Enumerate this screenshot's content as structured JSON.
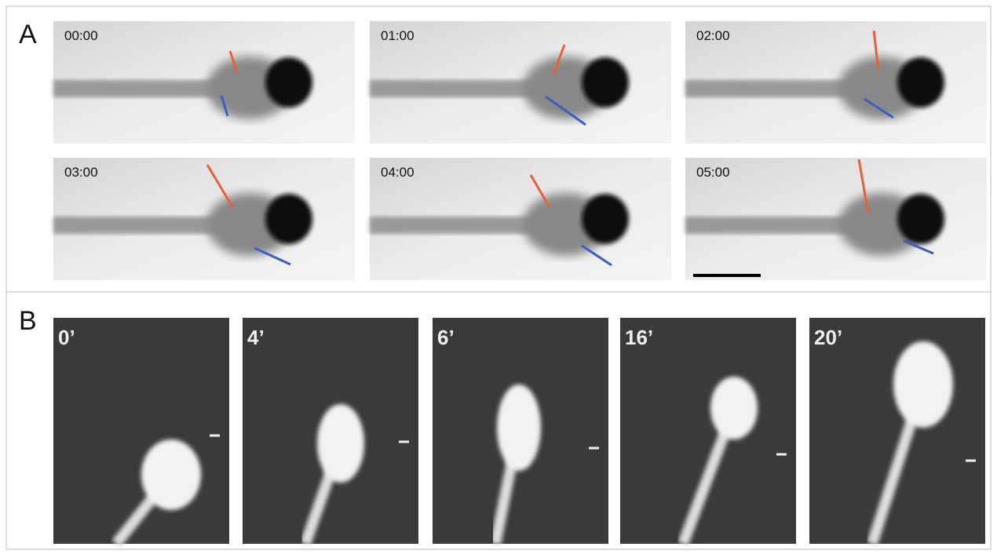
{
  "panels": [
    {
      "label": "A",
      "frames": [
        "00:00",
        "01:00",
        "02:00",
        "03:00",
        "04:00",
        "05:00"
      ]
    },
    {
      "label": "B",
      "frames": [
        "0’",
        "4’",
        "6’",
        "16’",
        "20’"
      ]
    }
  ]
}
